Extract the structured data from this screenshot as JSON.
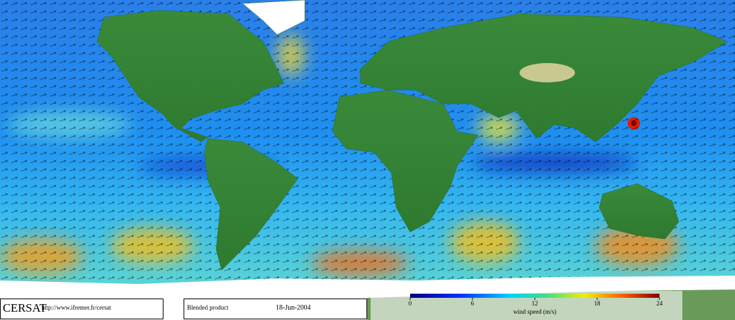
{
  "footer": {
    "logo": "CERSAT",
    "url": "http://www.ifremer.fr/cersat",
    "product": "Blended product",
    "date": "18-Jun-2004"
  },
  "colorbar": {
    "range": [
      0,
      24
    ],
    "ticks": [
      0,
      6,
      12,
      18,
      24
    ],
    "label": "wind speed (m/s)"
  }
}
